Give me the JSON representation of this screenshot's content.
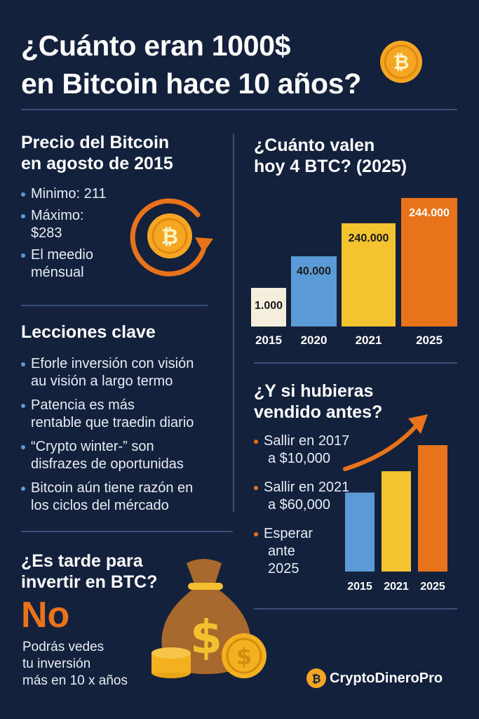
{
  "title": {
    "line1": "¿Cuánto eran 1000$",
    "line2": "en Bitcoin hace 10 años?"
  },
  "price_section": {
    "heading_line1": "Precio del Bitcoin",
    "heading_line2": "en agosto de 2015",
    "bullets": [
      "Minimo: 211",
      "Máximo:",
      "$283",
      "El meedio",
      "ménsual"
    ]
  },
  "value_section": {
    "heading_line1": "¿Cuánto valen",
    "heading_line2": "hoy 4 BTC? (2025)"
  },
  "lessons_section": {
    "heading": "Lecciones clave",
    "bullets": [
      [
        "Eforle inversión con visión",
        "au visión a largo termo"
      ],
      [
        "Patencia es más",
        "rentable que traedin diario"
      ],
      [
        "“Crypto winter-” son",
        "disfrazes de oportunidas"
      ],
      [
        "Bitcoin aún tiene razón en",
        "los ciclos del mércado"
      ]
    ]
  },
  "sold_section": {
    "heading_line1": "¿Y si hubieras",
    "heading_line2": "vendido antes?",
    "bullets": [
      [
        "Sallir en 2017",
        "a $10,000"
      ],
      [
        "Sallir en 2021",
        "a $60,000"
      ],
      [
        "Esperar",
        "ante",
        "2025"
      ]
    ]
  },
  "late_section": {
    "heading_line1": "¿Es tarde para",
    "heading_line2": "invertir en BTC?",
    "answer": "No",
    "text_line1": "Podrás vedes",
    "text_line2": "tu inversión",
    "text_line3": "más en 10 x años"
  },
  "brand": {
    "name": "CryptoDineroPro",
    "icon": "bitcoin-icon"
  },
  "colors": {
    "background": "#14213d",
    "accent_orange": "#e8731a",
    "gold": "#f5a623",
    "blue": "#5b9bd5",
    "yellow": "#f4c430",
    "cream": "#f3efdc"
  },
  "chart_data": [
    {
      "type": "bar",
      "categories": [
        "2015",
        "2020",
        "2021",
        "2025"
      ],
      "values": [
        1000,
        40000,
        240000,
        244000
      ],
      "labels": [
        "1.000",
        "40.000",
        "240.000",
        "244.000"
      ],
      "colors": [
        "#f3efdc",
        "#5b9bd5",
        "#f4c430",
        "#e8731a"
      ]
    },
    {
      "type": "bar",
      "categories": [
        "2015",
        "2021",
        "2025"
      ],
      "values": [
        1,
        1.27,
        1.6
      ],
      "colors": [
        "#5b9bd5",
        "#f4c430",
        "#e8731a"
      ]
    }
  ]
}
